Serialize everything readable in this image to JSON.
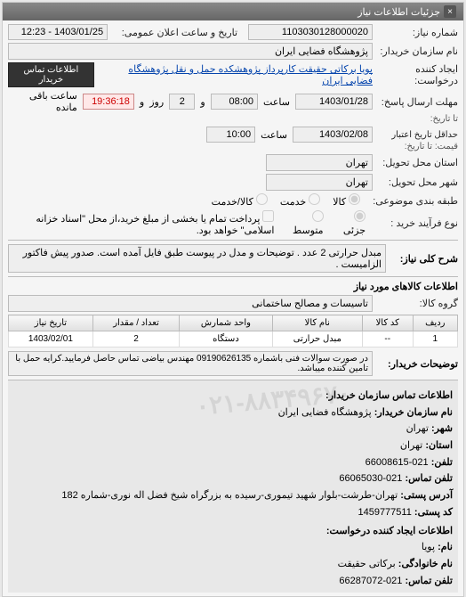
{
  "panel_title": "جزئیات اطلاعات نیاز",
  "header": {
    "req_no_label": "شماره نیاز:",
    "req_no": "1103030128000020",
    "public_date_label": "تاریخ و ساعت اعلان عمومی:",
    "public_date": "1403/01/25 - 12:23"
  },
  "buyer": {
    "buyer_label": "نام سازمان خریدار:",
    "buyer_name": "پژوهشگاه فضایی ایران",
    "creator_label": "ایجاد کننده درخواست:",
    "creator_name": "پویا برکاتی حقیقت کارپرداز پژوهشکده حمل و نقل پژوهشگاه فضایی ایران",
    "contact_btn": "اطلاعات تماس خریدار"
  },
  "deadlines": {
    "reply_deadline_label": "مهلت ارسال پاسخ:",
    "until_label": "تا تاریخ:",
    "reply_date": "1403/01/28",
    "time_label": "ساعت",
    "reply_time": "08:00",
    "and_label": "و",
    "remain_days": "2",
    "day_label": "روز",
    "remain_time": "19:36:18",
    "remain_suffix": "ساعت باقی مانده",
    "valid_label": "حداقل تاریخ اعتبار",
    "price_label": "قیمت: تا تاریخ:",
    "valid_date": "1403/02/08",
    "valid_time": "10:00"
  },
  "location": {
    "delivery_province_label": "استان محل تحویل:",
    "province": "تهران",
    "delivery_city_label": "شهر محل تحویل:",
    "city": "تهران"
  },
  "classification": {
    "label": "طبقه بندی موضوعی:",
    "opt_goods": "کالا",
    "opt_service": "خدمت",
    "opt_both": "کالا/خدمت"
  },
  "purchase": {
    "label": "نوع فرآیند خرید :",
    "opt_low": "جزئی",
    "opt_med": "متوسط",
    "note": "پرداخت تمام یا بخشی از مبلغ خرید،از محل \"اسناد خزانه اسلامی\" خواهد بود."
  },
  "overview": {
    "legend": "شرح کلی نیاز:",
    "text": "مبدل حرارتی 2 عدد . توضیحات و مدل در پیوست طبق فایل آمده است. صدور پیش فاکتور الزامیست ."
  },
  "goods_info": {
    "legend": "اطلاعات کالاهای مورد نیاز",
    "group_label": "گروه کالا:",
    "group_value": "تاسیسات و مصالح ساختمانی"
  },
  "table": {
    "cols": [
      "ردیف",
      "کد کالا",
      "نام کالا",
      "واحد شمارش",
      "تعداد / مقدار",
      "تاریخ نیاز"
    ],
    "rows": [
      [
        "1",
        "--",
        "مبدل حرارتی",
        "دستگاه",
        "2",
        "1403/02/01"
      ]
    ]
  },
  "buyer_notes": {
    "label": "توضیحات خریدار:",
    "text": "در صورت سوالات فنی باشماره 09190626135 مهندس بیاضی تماس حاصل فرمایید.کرایه حمل با تامین کننده میباشد."
  },
  "contact": {
    "legend": "اطلاعات تماس سازمان خریدار:",
    "org_label": "نام سازمان خریدار:",
    "org": "پژوهشگاه فضایی ایران",
    "city_label": "شهر:",
    "city": "تهران",
    "province_label": "استان:",
    "province": "تهران",
    "phone_label": "تلفن:",
    "phone": "021-66008615",
    "fax_label": "تلفن تماس:",
    "fax": "021-66065030",
    "address_label": "آدرس پستی:",
    "address": "تهران-طرشت-بلوار شهید تیموری-رسیده به بزرگراه شیخ فضل اله نوری-شماره 182",
    "postal_label": "کد پستی:",
    "postal": "1459777511",
    "creator_legend": "اطلاعات ایجاد کننده درخواست:",
    "fname_label": "نام:",
    "fname": "پویا",
    "lname_label": "نام خانوادگی:",
    "lname": "برکاتی حقیقت",
    "cphone_label": "تلفن تماس:",
    "cphone": "021-66287072"
  },
  "watermark": "۰۲۱-۸۸۳۴۹۶۷۰"
}
